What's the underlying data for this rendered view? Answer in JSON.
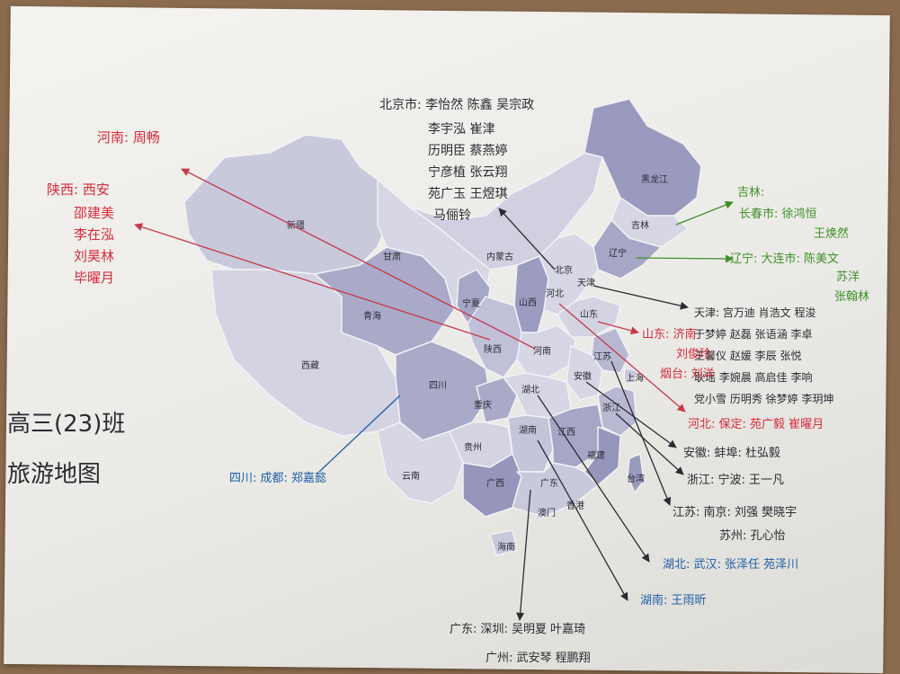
{
  "colors": {
    "paper": "#efeeea",
    "map_light": "#d6d6e4",
    "map_mid": "#b8b8d2",
    "map_dark": "#9696bc",
    "red_ink": "#d62a3a",
    "blue_ink": "#1f5fa8",
    "green_ink": "#3f8f2a",
    "dark_ink": "#2b2b33"
  },
  "title": {
    "line1": "高三(23)班",
    "line2": "旅游地图"
  },
  "provinces": {
    "heilongjiang": "黑龙江",
    "jilin": "吉林",
    "liaoning": "辽宁",
    "beijing": "北京",
    "tianjin": "天津",
    "hebei": "河北",
    "shandong": "山东",
    "shanxi": "山西",
    "neimenggu": "内蒙古",
    "xinjiang": "新疆",
    "gansu": "甘肃",
    "ningxia": "宁夏",
    "qinghai": "青海",
    "xizang": "西藏",
    "shaanxi": "陕西",
    "henan": "河南",
    "jiangsu": "江苏",
    "anhui": "安徽",
    "shanghai": "上海",
    "sichuan": "四川",
    "hubei": "湖北",
    "chongqing": "重庆",
    "zhejiang": "浙江",
    "hunan": "湖南",
    "jiangxi": "江西",
    "guizhou": "贵州",
    "fujian": "福建",
    "yunnan": "云南",
    "guangxi": "广西",
    "guangdong": "广东",
    "taiwan": "台湾",
    "xianggang": "香港",
    "aomen": "澳门",
    "hainan": "海南"
  },
  "notes": {
    "beijing": {
      "lines": [
        "北京市: 李怡然  陈鑫  吴宗政",
        "李宇泓  崔津",
        "历明臣  蔡燕婷",
        "宁彦植  张云翔",
        "苑广玉  王煜琪",
        "马俪铃"
      ]
    },
    "henan": {
      "text": "河南: 周畅"
    },
    "shaanxi": {
      "lines": [
        "陕西: 西安",
        "邵建美",
        "李在泓",
        "刘昊林",
        "毕曜月"
      ]
    },
    "jilin": {
      "lines": [
        "吉林:",
        "长春市: 徐鸿恒",
        "王焕然"
      ]
    },
    "liaoning": {
      "lines": [
        "辽宁: 大连市: 陈美文",
        "苏洋",
        "张翰林"
      ]
    },
    "tianjin": {
      "lines": [
        "天津: 宫万迪  肖浩文   程浚",
        "于梦婷  赵磊  张语涵  李卓",
        "王馨仪  赵媛  李辰  张悦",
        "耿瑶  李婉晨  高启佳  李响",
        "党小雪  历明秀  徐梦婷  李玥坤"
      ]
    },
    "shandong": {
      "lines": [
        "山东: 济南",
        "刘俊玲",
        "烟台: 刘洋"
      ]
    },
    "hebei": {
      "text": "河北: 保定: 苑广毅  崔曜月"
    },
    "anhui": {
      "text": "安徽: 蚌埠: 杜弘毅"
    },
    "zhejiang": {
      "text": "浙江: 宁波: 王一凡"
    },
    "jiangsu": {
      "lines": [
        "江苏: 南京: 刘强  樊晓宇",
        "苏州: 孔心怡"
      ]
    },
    "hubei": {
      "text": "湖北: 武汉: 张泽任  苑泽川"
    },
    "hunan": {
      "text": "湖南: 王雨昕"
    },
    "guangdong": {
      "lines": [
        "广东: 深圳: 吴明夏  叶嘉琦",
        "广州: 武安琴  程鹏翔"
      ]
    },
    "sichuan": {
      "text": "四川: 成都: 郑嘉懿"
    }
  }
}
